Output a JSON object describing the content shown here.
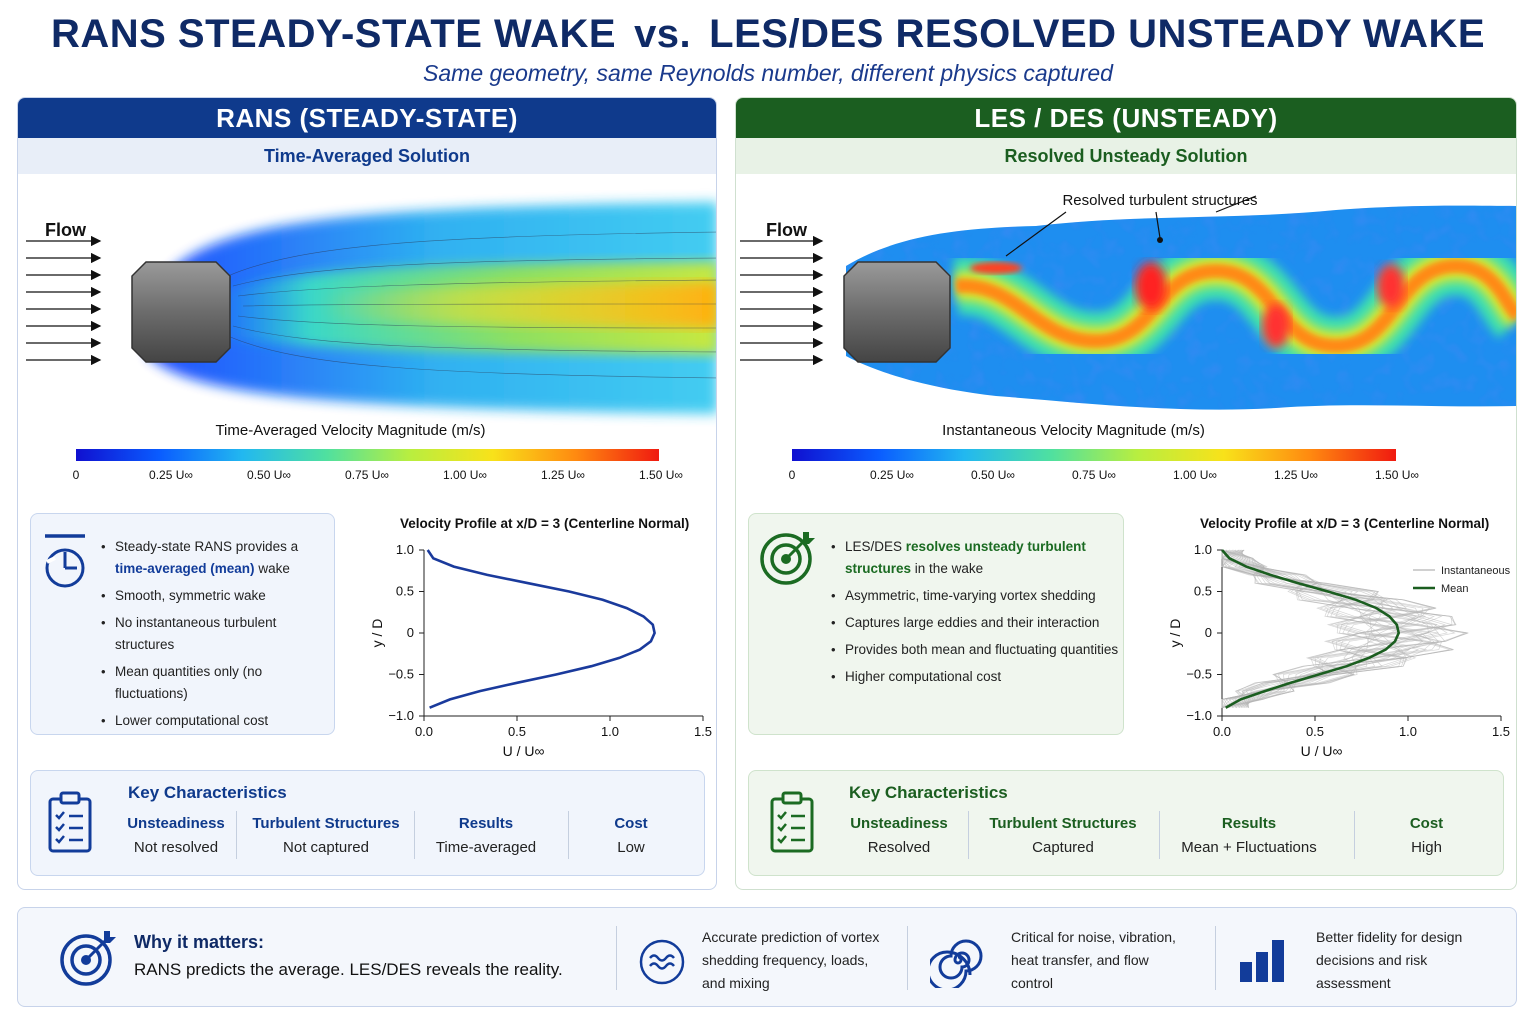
{
  "header": {
    "title_left": "RANS STEADY-STATE WAKE",
    "title_vs": "vs.",
    "title_right": "LES/DES RESOLVED UNSTEADY WAKE",
    "subtitle": "Same geometry, same Reynolds number, different physics captured"
  },
  "rans": {
    "heading": "RANS (STEADY-STATE)",
    "subheading": "Time-Averaged Solution",
    "flow_label": "Flow",
    "colorbar_title": "Time-Averaged Velocity Magnitude (m/s)",
    "colorbar_ticks": [
      "0",
      "0.25 U∞",
      "0.50 U∞",
      "0.75 U∞",
      "1.00 U∞",
      "1.25 U∞",
      "1.50 U∞"
    ],
    "bullets": {
      "b1_pre": "Steady-state RANS provides a",
      "b1_hl": "time-averaged (mean)",
      "b1_post": "wake",
      "b2": "Smooth, symmetric wake",
      "b3": "No instantaneous turbulent structures",
      "b4": "Mean quantities only (no fluctuations)",
      "b5": "Lower computational cost"
    },
    "key": {
      "title": "Key Characteristics",
      "cols": [
        {
          "h": "Unsteadiness",
          "v": "Not resolved"
        },
        {
          "h": "Turbulent Structures",
          "v": "Not captured"
        },
        {
          "h": "Results",
          "v": "Time-averaged"
        },
        {
          "h": "Cost",
          "v": "Low"
        }
      ]
    }
  },
  "les": {
    "heading": "LES / DES (UNSTEADY)",
    "subheading": "Resolved Unsteady Solution",
    "flow_label": "Flow",
    "annotation": "Resolved turbulent structures",
    "colorbar_title": "Instantaneous Velocity Magnitude (m/s)",
    "colorbar_ticks": [
      "0",
      "0.25 U∞",
      "0.50 U∞",
      "0.75 U∞",
      "1.00 U∞",
      "1.25 U∞",
      "1.50 U∞"
    ],
    "bullets": {
      "b1_pre": "LES/DES",
      "b1_hl": "resolves unsteady turbulent structures",
      "b1_post": "in the wake",
      "b2": "Asymmetric, time-varying vortex shedding",
      "b3": "Captures large eddies and their interaction",
      "b4": "Provides both mean and fluctuating quantities",
      "b5": "Higher computational cost"
    },
    "key": {
      "title": "Key Characteristics",
      "cols": [
        {
          "h": "Unsteadiness",
          "v": "Resolved"
        },
        {
          "h": "Turbulent Structures",
          "v": "Captured"
        },
        {
          "h": "Results",
          "v": "Mean + Fluctuations"
        },
        {
          "h": "Cost",
          "v": "High"
        }
      ]
    }
  },
  "bottom": {
    "why_title": "Why it matters:",
    "why_text": "RANS predicts the average.  LES/DES reveals the reality.",
    "items": [
      "Accurate prediction of vortex shedding frequency, loads, and mixing",
      "Critical for noise, vibration, heat transfer, and flow control",
      "Better fidelity for design decisions and risk assessment"
    ]
  },
  "colors": {
    "rans_accent": "#0f3a8c",
    "les_accent": "#1b5e20",
    "title": "#0f2a66"
  },
  "chart_data": [
    {
      "type": "line",
      "title": "Velocity Profile at x/D = 3 (Centerline Normal)",
      "xlabel": "U / U∞",
      "ylabel": "y / D",
      "xlim": [
        0,
        1.5
      ],
      "ylim": [
        -1.0,
        1.0
      ],
      "xticks": [
        "0.0",
        "0.5",
        "1.0",
        "1.5"
      ],
      "yticks": [
        "1.0",
        "0.5",
        "0",
        "−0.5",
        "−1.0"
      ],
      "series": [
        {
          "name": "",
          "color": "#1a3a9c",
          "y": [
            1.0,
            0.9,
            0.8,
            0.7,
            0.6,
            0.5,
            0.4,
            0.3,
            0.2,
            0.1,
            0.0,
            -0.1,
            -0.2,
            -0.3,
            -0.4,
            -0.5,
            -0.6,
            -0.7,
            -0.8,
            -0.9
          ],
          "x": [
            0.02,
            0.05,
            0.16,
            0.34,
            0.56,
            0.78,
            0.96,
            1.09,
            1.18,
            1.23,
            1.24,
            1.22,
            1.16,
            1.05,
            0.9,
            0.71,
            0.5,
            0.3,
            0.14,
            0.03
          ]
        }
      ]
    },
    {
      "type": "line",
      "title": "Velocity Profile at x/D = 3 (Centerline Normal)",
      "xlabel": "U / U∞",
      "ylabel": "y / D",
      "xlim": [
        0,
        1.5
      ],
      "ylim": [
        -1.0,
        1.0
      ],
      "xticks": [
        "0.0",
        "0.5",
        "1.0",
        "1.5"
      ],
      "yticks": [
        "1.0",
        "0.5",
        "0",
        "−0.5",
        "−1.0"
      ],
      "legend": "top-right",
      "series": [
        {
          "name": "Instantaneous",
          "color": "#b5b5b5",
          "count": 40
        },
        {
          "name": "Mean",
          "color": "#1b5e20",
          "y": [
            1.0,
            0.9,
            0.8,
            0.7,
            0.6,
            0.5,
            0.4,
            0.3,
            0.2,
            0.1,
            0.0,
            -0.1,
            -0.2,
            -0.3,
            -0.4,
            -0.5,
            -0.6,
            -0.7,
            -0.8,
            -0.9
          ],
          "x": [
            0.0,
            0.04,
            0.13,
            0.26,
            0.41,
            0.57,
            0.72,
            0.83,
            0.9,
            0.94,
            0.95,
            0.93,
            0.88,
            0.79,
            0.67,
            0.52,
            0.37,
            0.23,
            0.1,
            0.02
          ]
        }
      ]
    }
  ]
}
